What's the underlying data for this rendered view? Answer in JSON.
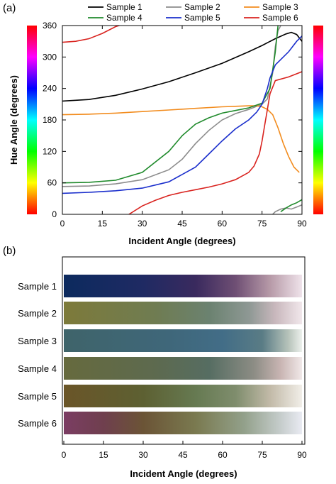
{
  "panel_a": {
    "label": "(a)"
  },
  "panel_b": {
    "label": "(b)"
  },
  "chart_data": [
    {
      "type": "line",
      "panel": "(a)",
      "xlabel": "Incident Angle (degrees)",
      "ylabel": "Hue Angle (degrees)",
      "xlim": [
        0,
        90
      ],
      "ylim": [
        0,
        360
      ],
      "xticks": [
        "0",
        "15",
        "30",
        "45",
        "60",
        "75",
        "90"
      ],
      "yticks": [
        "0",
        "60",
        "120",
        "180",
        "240",
        "300",
        "360"
      ],
      "grid": false,
      "legend_position": "top",
      "colorbars": "hue color scale 0-360 on left and right",
      "series": [
        {
          "name": "Sample 1",
          "color": "#000000",
          "x": [
            0,
            10,
            20,
            30,
            40,
            50,
            60,
            70,
            75,
            80,
            84,
            86,
            88,
            90
          ],
          "y": [
            216,
            219,
            227,
            239,
            253,
            270,
            288,
            310,
            322,
            335,
            344,
            347,
            343,
            330
          ]
        },
        {
          "name": "Sample 2",
          "color": "#8c8c8c",
          "x": [
            0,
            10,
            20,
            30,
            40,
            45,
            50,
            55,
            60,
            65,
            70,
            75,
            77,
            79,
            80,
            81,
            82
          ],
          "y": [
            53,
            54,
            58,
            66,
            85,
            105,
            135,
            160,
            180,
            192,
            200,
            210,
            220,
            270,
            320,
            350,
            360
          ],
          "x2": [
            79,
            80,
            82,
            84,
            86,
            88,
            90
          ],
          "y2": [
            0,
            5,
            10,
            12,
            10,
            14,
            18
          ]
        },
        {
          "name": "Sample 3",
          "color": "#f28c1e",
          "x": [
            0,
            10,
            20,
            30,
            40,
            50,
            60,
            65,
            70,
            73,
            75,
            77,
            79,
            81,
            83,
            85,
            87,
            89
          ],
          "y": [
            190,
            191,
            193,
            196,
            199,
            202,
            205,
            206,
            207,
            207,
            205,
            200,
            190,
            165,
            135,
            110,
            90,
            80
          ]
        },
        {
          "name": "Sample 4",
          "color": "#1f8a2b",
          "x": [
            0,
            10,
            20,
            30,
            40,
            45,
            50,
            55,
            60,
            65,
            70,
            75,
            78,
            80,
            81
          ],
          "y": [
            60,
            61,
            65,
            80,
            120,
            150,
            172,
            184,
            193,
            198,
            203,
            212,
            240,
            310,
            360
          ],
          "x2": [
            82,
            84,
            86,
            88,
            90
          ],
          "y2": [
            5,
            12,
            18,
            22,
            28
          ]
        },
        {
          "name": "Sample 5",
          "color": "#1a2ecc",
          "x": [
            0,
            10,
            20,
            30,
            40,
            50,
            55,
            60,
            65,
            70,
            73,
            75,
            77,
            78,
            80,
            85,
            88,
            90
          ],
          "y": [
            40,
            42,
            45,
            50,
            62,
            90,
            115,
            140,
            163,
            180,
            195,
            210,
            240,
            260,
            285,
            310,
            330,
            340
          ]
        },
        {
          "name": "Sample 6",
          "color": "#d9231f",
          "x": [
            0,
            5,
            10,
            15,
            20,
            25
          ],
          "y": [
            328,
            330,
            335,
            345,
            358,
            366
          ],
          "x2": [
            25,
            30,
            35,
            40,
            45,
            50,
            55,
            60,
            65,
            70,
            72,
            74,
            75,
            76,
            77,
            78,
            80,
            85,
            90
          ],
          "y2": [
            0,
            16,
            27,
            36,
            42,
            47,
            52,
            58,
            66,
            80,
            92,
            115,
            140,
            170,
            200,
            230,
            255,
            262,
            272
          ]
        }
      ]
    },
    {
      "type": "heatmap",
      "panel": "(b)",
      "xlabel": "Incident Angle (degrees)",
      "xlim": [
        0,
        90
      ],
      "xticks": [
        "0",
        "15",
        "30",
        "45",
        "60",
        "75",
        "90"
      ],
      "rows": [
        {
          "label": "Sample 1",
          "stops": [
            [
              0,
              "#0c2a5e"
            ],
            [
              30,
              "#1f2a63"
            ],
            [
              50,
              "#3a2a5e"
            ],
            [
              65,
              "#6f4f74"
            ],
            [
              78,
              "#b79aa8"
            ],
            [
              90,
              "#efe3ea"
            ]
          ]
        },
        {
          "label": "Sample 2",
          "stops": [
            [
              0,
              "#7d7a3a"
            ],
            [
              35,
              "#6f7c52"
            ],
            [
              55,
              "#6b8270"
            ],
            [
              70,
              "#8e9894"
            ],
            [
              80,
              "#c9b8bd"
            ],
            [
              90,
              "#f1e7eb"
            ]
          ]
        },
        {
          "label": "Sample 3",
          "stops": [
            [
              0,
              "#3f646a"
            ],
            [
              40,
              "#3f677a"
            ],
            [
              60,
              "#426d87"
            ],
            [
              75,
              "#5a7c85"
            ],
            [
              85,
              "#b8c4bb"
            ],
            [
              90,
              "#ecf0ec"
            ]
          ]
        },
        {
          "label": "Sample 4",
          "stops": [
            [
              0,
              "#666a3e"
            ],
            [
              35,
              "#5d6a4f"
            ],
            [
              55,
              "#566d62"
            ],
            [
              72,
              "#8d8d85"
            ],
            [
              82,
              "#c9b5b3"
            ],
            [
              90,
              "#f0e8e8"
            ]
          ]
        },
        {
          "label": "Sample 5",
          "stops": [
            [
              0,
              "#6a5528"
            ],
            [
              30,
              "#5d6032"
            ],
            [
              50,
              "#667a52"
            ],
            [
              65,
              "#7f8d6d"
            ],
            [
              78,
              "#c2baa8"
            ],
            [
              90,
              "#f1eee8"
            ]
          ]
        },
        {
          "label": "Sample 6",
          "stops": [
            [
              0,
              "#7b3d63"
            ],
            [
              15,
              "#6f3f4e"
            ],
            [
              30,
              "#6b5436"
            ],
            [
              50,
              "#7a7a50"
            ],
            [
              68,
              "#92a08a"
            ],
            [
              82,
              "#c6cdcc"
            ],
            [
              90,
              "#e9eaf2"
            ]
          ]
        }
      ]
    }
  ]
}
